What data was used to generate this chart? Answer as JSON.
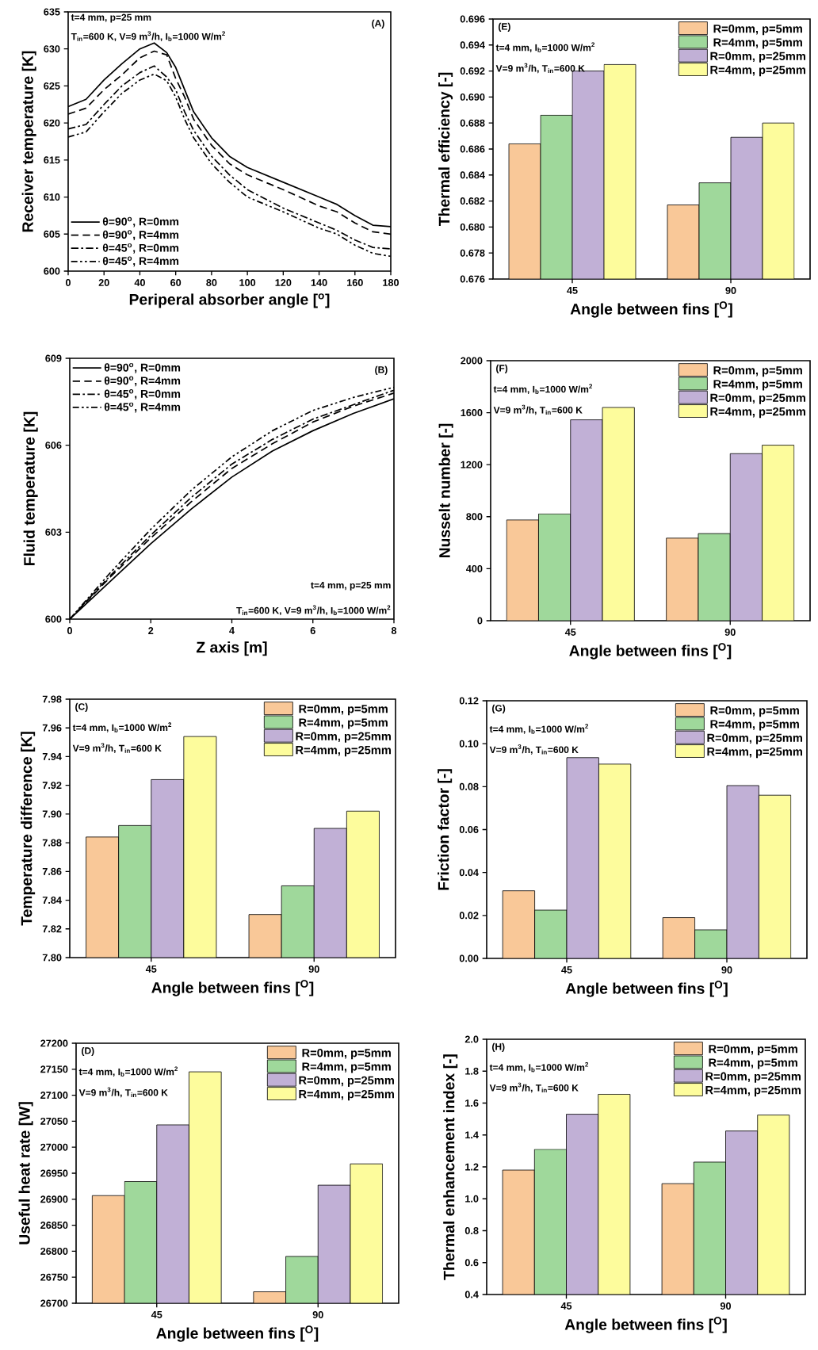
{
  "chart_data": [
    {
      "type": "line",
      "xlabel": "Periperal absorber angle [$^{o}$]",
      "ylabel": "Receiver temperature [K]",
      "annotations": [
        "(A)",
        "t=4 mm, p=25 mm",
        "T$_{in}$=600 K, V=9 m$^{3}$/h, I$_{b}$=1000 W/m$^{2}$"
      ],
      "x": [
        0,
        10,
        20,
        30,
        40,
        48,
        55,
        60,
        65,
        70,
        80,
        90,
        100,
        120,
        140,
        150,
        160,
        170,
        180
      ],
      "series": [
        {
          "name": "θ=90$^{o}$, R=0mm",
          "color": "#000000",
          "line_style": "solid",
          "values": [
            622.2,
            623.2,
            625.8,
            628,
            630,
            630.8,
            629.5,
            627.5,
            624.5,
            621.5,
            618,
            615.5,
            614,
            612,
            610,
            609,
            607.5,
            606.2,
            606
          ]
        },
        {
          "name": "θ=90$^{o}$, R=4mm",
          "color": "#000000",
          "line_style": "dashed",
          "values": [
            621.2,
            622,
            624.5,
            626.5,
            628.8,
            629.7,
            629.2,
            626,
            623.5,
            620.5,
            617,
            614.5,
            613,
            611,
            608.8,
            608,
            606.5,
            605.3,
            605
          ]
        },
        {
          "name": "θ=45$^{o}$, R=0mm",
          "color": "#000000",
          "line_style": "dashdot",
          "values": [
            619.2,
            619.8,
            622.5,
            625,
            626.8,
            627.7,
            626.2,
            624.5,
            621.5,
            619,
            615.5,
            613,
            611,
            608.5,
            606.5,
            605.5,
            604.2,
            603.2,
            603
          ]
        },
        {
          "name": "θ=45$^{o}$, R=4mm",
          "color": "#000000",
          "line_style": "dashdotdot",
          "values": [
            618.1,
            618.8,
            621.5,
            624,
            625.8,
            626.6,
            625.7,
            623.5,
            620.5,
            618,
            614.5,
            612,
            610,
            608,
            605.8,
            605,
            603.5,
            602.4,
            602
          ]
        }
      ],
      "xlim": [
        0,
        180
      ],
      "xticks": [
        0,
        20,
        40,
        60,
        80,
        100,
        120,
        140,
        160,
        180
      ],
      "ylim": [
        600,
        635
      ],
      "yticks": [
        600,
        605,
        610,
        615,
        620,
        625,
        630,
        635
      ],
      "legend": "bottom left"
    },
    {
      "type": "line",
      "xlabel": "Z axis [m]",
      "ylabel": "Fluid temperature [K]",
      "annotations": [
        "(B)",
        "t=4 mm, p=25 mm",
        "T$_{in}$=600 K, V=9 m$^{3}$/h, I$_{b}$=1000 W/m$^{2}$"
      ],
      "x": [
        0,
        1,
        2,
        3,
        4,
        5,
        6,
        7,
        8
      ],
      "series": [
        {
          "name": "θ=90$^{o}$, R=0mm",
          "color": "#000000",
          "line_style": "solid",
          "values": [
            600,
            601.3,
            602.6,
            603.8,
            604.9,
            605.8,
            606.5,
            607.1,
            607.6
          ]
        },
        {
          "name": "θ=90$^{o}$, R=4mm",
          "color": "#000000",
          "line_style": "dashed",
          "values": [
            600,
            601.45,
            602.8,
            604.05,
            605.2,
            606.05,
            606.8,
            607.35,
            607.8
          ]
        },
        {
          "name": "θ=45$^{o}$, R=0mm",
          "color": "#000000",
          "line_style": "dashdot",
          "values": [
            600,
            601.5,
            602.9,
            604.2,
            605.35,
            606.2,
            606.9,
            607.4,
            607.9
          ]
        },
        {
          "name": "θ=45$^{o}$, R=4mm",
          "color": "#000000",
          "line_style": "dashdotdot",
          "values": [
            600,
            601.6,
            603.1,
            604.45,
            605.6,
            606.5,
            607.2,
            607.65,
            608.0
          ]
        }
      ],
      "xlim": [
        0,
        8
      ],
      "xticks": [
        0,
        2,
        4,
        6,
        8
      ],
      "ylim": [
        600,
        609
      ],
      "yticks": [
        600,
        603,
        606,
        609
      ],
      "legend": "top left"
    },
    {
      "type": "bar",
      "xlabel": "Angle between fins [$^{O}$]",
      "ylabel": "Temperature difference [K]",
      "annotations": [
        "(C)",
        "t=4 mm, I$_{b}$=1000 W/m$^{2}$",
        "V=9 m$^{3}$/h, T$_{in}$=600 K"
      ],
      "categories": [
        "45",
        "90"
      ],
      "series": [
        {
          "name": "R=0mm, p=5mm",
          "color": "#f9c898",
          "values": [
            7.884,
            7.83
          ]
        },
        {
          "name": "R=4mm, p=5mm",
          "color": "#9fd89b",
          "values": [
            7.892,
            7.85
          ]
        },
        {
          "name": "R=0mm, p=25mm",
          "color": "#c1b0d6",
          "values": [
            7.924,
            7.89
          ]
        },
        {
          "name": "R=4mm, p=25mm",
          "color": "#fdfc9c",
          "values": [
            7.954,
            7.902
          ]
        }
      ],
      "ylim": [
        7.8,
        7.98
      ],
      "yticks": [
        {
          "value": 7.8,
          "label": "7.80"
        },
        {
          "value": 7.82,
          "label": "7.82"
        },
        {
          "value": 7.84,
          "label": "7.84"
        },
        {
          "value": 7.86,
          "label": "7.86"
        },
        {
          "value": 7.88,
          "label": "7.88"
        },
        {
          "value": 7.9,
          "label": "7.90"
        },
        {
          "value": 7.92,
          "label": "7.92"
        },
        {
          "value": 7.94,
          "label": "7.94"
        },
        {
          "value": 7.96,
          "label": "7.96"
        },
        {
          "value": 7.98,
          "label": "7.98"
        }
      ],
      "legend": "top right"
    },
    {
      "type": "bar",
      "xlabel": "Angle between fins [$^{O}$]",
      "ylabel": "Useful heat rate [W]",
      "annotations": [
        "(D)",
        "t=4 mm, I$_{b}$=1000 W/m$^{2}$",
        "V=9 m$^{3}$/h, T$_{in}$=600 K"
      ],
      "categories": [
        "45",
        "90"
      ],
      "series": [
        {
          "name": "R=0mm, p=5mm",
          "color": "#f9c898",
          "values": [
            26907,
            26722
          ]
        },
        {
          "name": "R=4mm, p=5mm",
          "color": "#9fd89b",
          "values": [
            26934,
            26790
          ]
        },
        {
          "name": "R=0mm, p=25mm",
          "color": "#c1b0d6",
          "values": [
            27043,
            26927
          ]
        },
        {
          "name": "R=4mm, p=25mm",
          "color": "#fdfc9c",
          "values": [
            27145,
            26968
          ]
        }
      ],
      "ylim": [
        26700,
        27200
      ],
      "yticks": [
        26700,
        26750,
        26800,
        26850,
        26900,
        26950,
        27000,
        27050,
        27100,
        27150,
        27200
      ],
      "legend": "top right"
    },
    {
      "type": "bar",
      "xlabel": "Angle between fins [$^{O}$]",
      "ylabel": "Thermal efficiency [-]",
      "annotations": [
        "(E)",
        "t=4 mm, I$_{b}$=1000 W/m$^{2}$",
        "V=9 m$^{3}$/h, T$_{in}$=600 K"
      ],
      "categories": [
        "45",
        "90"
      ],
      "series": [
        {
          "name": "R=0mm, p=5mm",
          "color": "#f9c898",
          "values": [
            0.6864,
            0.6817
          ]
        },
        {
          "name": "R=4mm, p=5mm",
          "color": "#9fd89b",
          "values": [
            0.6886,
            0.6834
          ]
        },
        {
          "name": "R=0mm, p=25mm",
          "color": "#c1b0d6",
          "values": [
            0.692,
            0.6869
          ]
        },
        {
          "name": "R=4mm, p=25mm",
          "color": "#fdfc9c",
          "values": [
            0.6925,
            0.688
          ]
        }
      ],
      "ylim": [
        0.676,
        0.696
      ],
      "yticks": [
        0.676,
        0.678,
        {
          "value": 0.68,
          "label": "0.680"
        },
        0.682,
        0.684,
        0.686,
        0.688,
        {
          "value": 0.69,
          "label": "0.690"
        },
        0.692,
        0.694,
        0.696
      ],
      "legend": "top right"
    },
    {
      "type": "bar",
      "xlabel": "Angle between fins [$^{O}$]",
      "ylabel": "Nusselt number [-]",
      "annotations": [
        "(F)",
        "t=4 mm, I$_{b}$=1000 W/m$^{2}$",
        "V=9 m$^{3}$/h, T$_{in}$=600 K"
      ],
      "categories": [
        "45",
        "90"
      ],
      "series": [
        {
          "name": "R=0mm, p=5mm",
          "color": "#f9c898",
          "values": [
            775,
            635
          ]
        },
        {
          "name": "R=4mm, p=5mm",
          "color": "#9fd89b",
          "values": [
            822,
            670
          ]
        },
        {
          "name": "R=0mm, p=25mm",
          "color": "#c1b0d6",
          "values": [
            1545,
            1285
          ]
        },
        {
          "name": "R=4mm, p=25mm",
          "color": "#fdfc9c",
          "values": [
            1640,
            1350
          ]
        }
      ],
      "ylim": [
        0,
        2000
      ],
      "yticks": [
        0,
        400,
        800,
        1200,
        1600,
        2000
      ],
      "legend": "top right"
    },
    {
      "type": "bar",
      "xlabel": "Angle between fins [$^{O}$]",
      "ylabel": "Friction factor [-]",
      "annotations": [
        "(G)",
        "t=4 mm, I$_{b}$=1000 W/m$^{2}$",
        "V=9 m$^{3}$/h, T$_{in}$=600 K"
      ],
      "categories": [
        "45",
        "90"
      ],
      "series": [
        {
          "name": "R=0mm, p=5mm",
          "color": "#f9c898",
          "values": [
            0.0315,
            0.019
          ]
        },
        {
          "name": "R=4mm, p=5mm",
          "color": "#9fd89b",
          "values": [
            0.0225,
            0.0133
          ]
        },
        {
          "name": "R=0mm, p=25mm",
          "color": "#c1b0d6",
          "values": [
            0.0935,
            0.0805
          ]
        },
        {
          "name": "R=4mm, p=25mm",
          "color": "#fdfc9c",
          "values": [
            0.0905,
            0.076
          ]
        }
      ],
      "ylim": [
        0,
        0.12
      ],
      "yticks": [
        {
          "value": 0,
          "label": "0.00"
        },
        0.02,
        0.04,
        0.06,
        0.08,
        {
          "value": 0.1,
          "label": "0.10"
        },
        0.12
      ],
      "legend": "top right"
    },
    {
      "type": "bar",
      "xlabel": "Angle between fins [$^{O}$]",
      "ylabel": "Thermal  enhancement index [-]",
      "annotations": [
        "(H)",
        "t=4 mm, I$_{b}$=1000 W/m$^{2}$",
        "V=9 m$^{3}$/h, T$_{in}$=600 K"
      ],
      "categories": [
        "45",
        "90"
      ],
      "series": [
        {
          "name": "R=0mm, p=5mm",
          "color": "#f9c898",
          "values": [
            1.18,
            1.095
          ]
        },
        {
          "name": "R=4mm, p=5mm",
          "color": "#9fd89b",
          "values": [
            1.31,
            1.23
          ]
        },
        {
          "name": "R=0mm, p=25mm",
          "color": "#c1b0d6",
          "values": [
            1.53,
            1.425
          ]
        },
        {
          "name": "R=4mm, p=25mm",
          "color": "#fdfc9c",
          "values": [
            1.655,
            1.525
          ]
        }
      ],
      "ylim": [
        0.4,
        2.0
      ],
      "yticks": [
        0.4,
        0.6,
        0.8,
        {
          "value": 1.0,
          "label": "1.0"
        },
        1.2,
        1.4,
        1.6,
        1.8,
        {
          "value": 2.0,
          "label": "2.0"
        }
      ],
      "legend": "top right"
    }
  ]
}
